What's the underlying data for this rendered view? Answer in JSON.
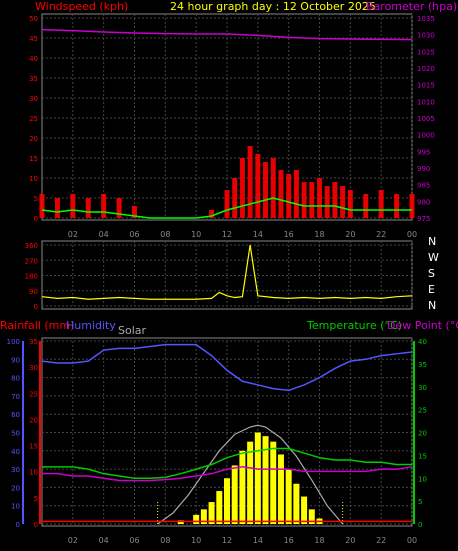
{
  "header": {
    "left_label": "Windspeed (kph)",
    "center_label": "24 hour graph day : 12 October 2025",
    "right_label": "Barometer (hpa)"
  },
  "colors": {
    "wind": "#ff0000",
    "gust_fill": "#ff0000",
    "avg_wind": "#00ff00",
    "barometer": "#cc00cc",
    "direction": "#ffff00",
    "humidity": "#5555ff",
    "temperature": "#00cc00",
    "dewpoint": "#cc00cc",
    "rain": "#ff0000",
    "solar": "#ffff00",
    "solar_max": "#aaaaaa",
    "grid": "#444444",
    "axis_text": "#ff0000"
  },
  "chart_data": [
    {
      "type": "line",
      "panel": "wind-barometer",
      "x_ticks": [
        "02",
        "04",
        "06",
        "08",
        "10",
        "12",
        "14",
        "16",
        "18",
        "20",
        "22",
        "00"
      ],
      "left_axis": {
        "label": "Windspeed (kph)",
        "range": [
          0,
          50
        ],
        "ticks": [
          0,
          5,
          10,
          15,
          20,
          25,
          30,
          35,
          40,
          45,
          50
        ]
      },
      "right_axis": {
        "label": "Barometer (hpa)",
        "range": [
          975,
          1035
        ],
        "ticks": [
          975,
          980,
          985,
          990,
          995,
          1000,
          1005,
          1010,
          1015,
          1020,
          1025,
          1030,
          1035
        ]
      },
      "series": [
        {
          "name": "Barometer (hpa)",
          "axis": "right",
          "x": [
            0,
            2,
            4,
            6,
            8,
            10,
            12,
            14,
            16,
            18,
            20,
            22,
            24
          ],
          "values": [
            1031.5,
            1031.2,
            1030.8,
            1030.5,
            1030.3,
            1030.2,
            1030.2,
            1029.8,
            1029.2,
            1028.8,
            1028.7,
            1028.6,
            1028.5
          ]
        },
        {
          "axis": "left",
          "style": "gust-bars",
          "x": [
            0,
            1,
            2,
            3,
            4,
            5,
            6,
            7,
            8,
            9,
            10,
            11,
            12,
            12.5,
            13,
            13.5,
            14,
            14.5,
            15,
            15.5,
            16,
            16.5,
            17,
            17.5,
            18,
            18.5,
            19,
            19.5,
            20,
            21,
            22,
            23,
            24
          ],
          "values": [
            6,
            5,
            6,
            5,
            6,
            5,
            3,
            0,
            0,
            0,
            0,
            2,
            7,
            10,
            15,
            18,
            16,
            14,
            15,
            12,
            11,
            12,
            9,
            9,
            10,
            8,
            9,
            8,
            7,
            6,
            7,
            6,
            6
          ]
        },
        {
          "axis": "left",
          "style": "average-line",
          "x": [
            0,
            1,
            2,
            3,
            4,
            5,
            6,
            7,
            8,
            9,
            10,
            11,
            12,
            13,
            14,
            15,
            16,
            17,
            18,
            19,
            20,
            21,
            22,
            23,
            24
          ],
          "values": [
            2,
            1.5,
            2,
            1.5,
            1.5,
            1,
            0.5,
            0,
            0,
            0,
            0,
            0.5,
            2,
            3,
            4,
            5,
            4,
            3,
            3,
            3,
            2,
            2,
            2,
            2,
            2
          ]
        }
      ]
    },
    {
      "type": "scatter",
      "panel": "wind-direction",
      "left_axis": {
        "range": [
          0,
          360
        ],
        "ticks": [
          0,
          90,
          180,
          270,
          360
        ]
      },
      "right_labels": [
        "N",
        "W",
        "S",
        "E",
        "N"
      ],
      "series": [
        {
          "x": [
            0,
            1,
            2,
            3,
            4,
            5,
            6,
            7,
            8,
            9,
            10,
            11,
            11.5,
            12,
            12.5,
            13,
            13.5,
            14,
            15,
            16,
            17,
            18,
            19,
            20,
            21,
            22,
            23,
            24
          ],
          "values": [
            55,
            45,
            50,
            40,
            45,
            50,
            45,
            40,
            40,
            40,
            40,
            45,
            80,
            60,
            50,
            55,
            360,
            60,
            50,
            45,
            50,
            45,
            50,
            45,
            50,
            45,
            55,
            60
          ]
        }
      ]
    },
    {
      "type": "line",
      "panel": "temp-humidity-rain-solar",
      "x_ticks": [
        "02",
        "04",
        "06",
        "08",
        "10",
        "12",
        "14",
        "16",
        "18",
        "20",
        "22",
        "00"
      ],
      "header_labels": {
        "rainfall": "Rainfall (mm)",
        "humidity": "Humidity",
        "solar": "Solar",
        "temperature": "Temperature (°C)",
        "dewpoint": "Dew Point (°C)"
      },
      "humidity_axis": {
        "range": [
          0,
          100
        ],
        "ticks": [
          0,
          10,
          20,
          30,
          40,
          50,
          60,
          70,
          80,
          90,
          100
        ]
      },
      "rain_axis": {
        "range": [
          0,
          35
        ],
        "ticks": [
          0,
          5,
          10,
          15,
          20,
          25,
          30,
          35
        ]
      },
      "temp_axis": {
        "range": [
          0,
          40
        ],
        "ticks": [
          0,
          5,
          10,
          15,
          20,
          25,
          30,
          35,
          40
        ]
      },
      "series": [
        {
          "name": "Humidity",
          "axis": "humidity",
          "x": [
            0,
            1,
            2,
            3,
            4,
            5,
            6,
            7,
            8,
            9,
            10,
            11,
            12,
            13,
            14,
            15,
            16,
            17,
            18,
            19,
            20,
            21,
            22,
            23,
            24
          ],
          "values": [
            89,
            88,
            88,
            89,
            95,
            96,
            96,
            97,
            98,
            98,
            98,
            92,
            84,
            78,
            76,
            74,
            73,
            76,
            80,
            85,
            89,
            90,
            92,
            93,
            94
          ]
        },
        {
          "name": "Temperature (°C)",
          "axis": "temp",
          "x": [
            0,
            1,
            2,
            3,
            4,
            5,
            6,
            7,
            8,
            9,
            10,
            11,
            12,
            13,
            14,
            15,
            16,
            17,
            18,
            19,
            20,
            21,
            22,
            23,
            24
          ],
          "values": [
            12.5,
            12.5,
            12.5,
            12,
            11,
            10.5,
            10,
            10,
            10.2,
            11,
            12,
            13,
            14.5,
            15.5,
            16,
            16.5,
            16.5,
            15.5,
            14.5,
            14,
            14,
            13.5,
            13.5,
            13,
            13
          ]
        },
        {
          "name": "Dew Point (°C)",
          "axis": "temp",
          "x": [
            0,
            1,
            2,
            3,
            4,
            5,
            6,
            7,
            8,
            9,
            10,
            11,
            12,
            13,
            14,
            15,
            16,
            17,
            18,
            19,
            20,
            21,
            22,
            23,
            24
          ],
          "values": [
            11,
            11,
            10.5,
            10.5,
            10,
            9.5,
            9.5,
            9.5,
            9.7,
            10,
            10.5,
            11,
            12,
            12.5,
            12,
            12,
            12,
            11.5,
            11.5,
            11.5,
            11.5,
            11.5,
            12,
            12,
            12.5
          ]
        },
        {
          "name": "Rainfall (mm)",
          "axis": "rain",
          "x": [
            0,
            24
          ],
          "values": [
            0.5,
            0.5
          ]
        },
        {
          "name": "Solar",
          "axis": "humidity",
          "style": "area",
          "x": [
            8,
            9,
            10,
            10.5,
            11,
            11.5,
            12,
            12.5,
            13,
            13.5,
            14,
            14.5,
            15,
            15.5,
            16,
            16.5,
            17,
            17.5,
            18,
            19
          ],
          "values": [
            0,
            2,
            5,
            8,
            12,
            18,
            25,
            32,
            40,
            45,
            50,
            48,
            45,
            38,
            30,
            22,
            15,
            8,
            3,
            0
          ]
        },
        {
          "axis": "humidity",
          "style": "max-solar-curve",
          "x": [
            7.5,
            8.5,
            9.5,
            10.5,
            11.5,
            12.5,
            13.5,
            14,
            14.5,
            15.5,
            16.5,
            17.5,
            18.5,
            19.5
          ],
          "values": [
            0,
            6,
            16,
            28,
            40,
            49,
            53,
            54,
            53,
            47,
            37,
            24,
            10,
            0
          ]
        }
      ]
    }
  ]
}
